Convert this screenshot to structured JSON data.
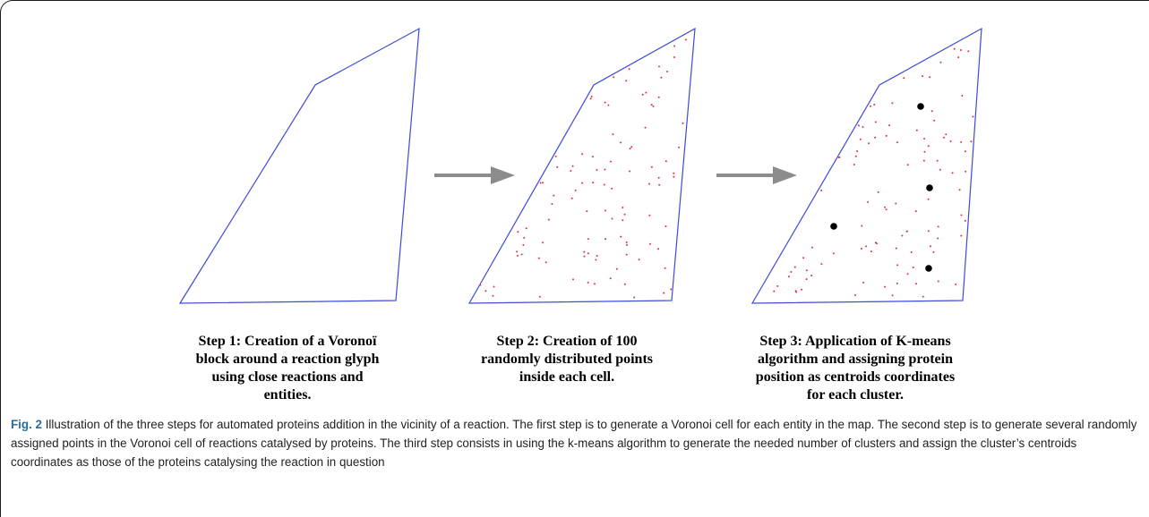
{
  "steps": [
    {
      "caption": "Step 1: Creation of a Voronoï\nblock around a reaction glyph\nusing close reactions and\nentities."
    },
    {
      "caption": "Step 2: Creation of 100\nrandomly distributed points\ninside each cell."
    },
    {
      "caption": "Step 3: Application of K-means\nalgorithm and assigning protein\nposition as centroids coordinates\nfor each cluster."
    }
  ],
  "figure": {
    "label": "Fig. 2",
    "text": " Illustration of the three steps for automated proteins addition in the vicinity of a reaction. The first step is to generate a Voronoi cell for each entity in the map. The second step is to generate several randomly assigned points in the Voronoi cell of reactions catalysed by proteins. The third step consists in using the k-means algorithm to generate the needed number of clusters and assign the cluster’s centroids coordinates as those of the proteins catalysing the reaction in question"
  },
  "colors": {
    "polygon": "#3c4bd8",
    "random_point": "#e0303a",
    "centroid": "#000000",
    "arrow": "#8c8c8c",
    "figure_label": "#2b6d9a"
  }
}
